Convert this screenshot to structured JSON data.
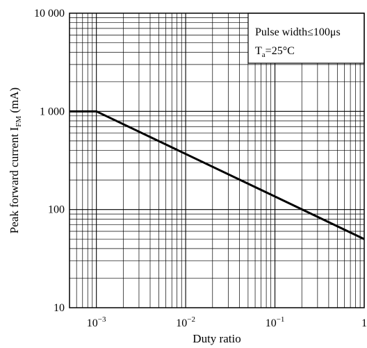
{
  "chart_data": {
    "type": "line",
    "title": "",
    "xlabel": "Duty ratio",
    "ylabel": {
      "main": "Peak forward current I",
      "sub": "FM",
      "unit": " (mA)"
    },
    "x_scale": "log",
    "y_scale": "log",
    "xlim": [
      0.0005,
      1
    ],
    "ylim": [
      10,
      10000
    ],
    "x_ticks": [
      {
        "value": 0.001,
        "base": "10",
        "exp": "−3"
      },
      {
        "value": 0.01,
        "base": "10",
        "exp": "−2"
      },
      {
        "value": 0.1,
        "base": "10",
        "exp": "−1"
      },
      {
        "value": 1,
        "base": "1",
        "exp": ""
      }
    ],
    "y_ticks": [
      {
        "value": 10,
        "label": "10"
      },
      {
        "value": 100,
        "label": "100"
      },
      {
        "value": 1000,
        "label": "1 000"
      },
      {
        "value": 10000,
        "label": "10 000"
      }
    ],
    "grid": true,
    "series": [
      {
        "color": "#000000",
        "x": [
          0.0005,
          0.001,
          1
        ],
        "y": [
          1000,
          1000,
          50
        ]
      }
    ],
    "annotation": {
      "line1": "Pulse width≤100μs",
      "line2_main": "T",
      "line2_sub": "a",
      "line2_rest": "=25°C",
      "placement": "top-right"
    }
  }
}
